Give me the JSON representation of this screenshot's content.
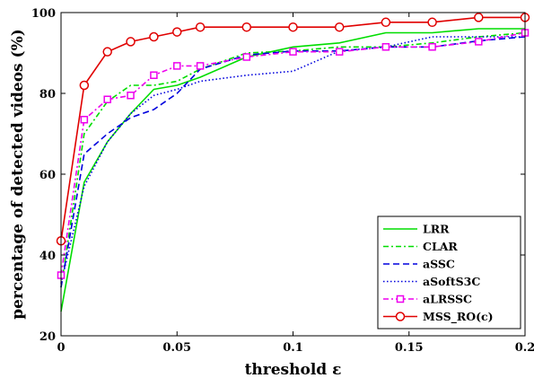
{
  "chart_data": {
    "type": "line",
    "xlabel": "threshold ε",
    "ylabel": "percentage of detected videos (%)",
    "xlim": [
      0,
      0.2
    ],
    "ylim": [
      20,
      100
    ],
    "xticks": [
      0,
      0.05,
      0.1,
      0.15,
      0.2
    ],
    "xtick_labels": [
      "0",
      "0.05",
      "0.1",
      "0.15",
      "0.2"
    ],
    "yticks": [
      20,
      40,
      60,
      80,
      100
    ],
    "ytick_labels": [
      "20",
      "40",
      "60",
      "80",
      "100"
    ],
    "grid": false,
    "legend_position": "bottom-right",
    "series": [
      {
        "name": "LRR",
        "color": "#00dd00",
        "dash": "solid",
        "marker": "none",
        "x": [
          0,
          0.01,
          0.02,
          0.03,
          0.04,
          0.05,
          0.06,
          0.08,
          0.1,
          0.12,
          0.14,
          0.16,
          0.18,
          0.2
        ],
        "y": [
          26,
          58,
          68,
          75,
          81,
          82,
          84,
          89,
          91.5,
          92.5,
          95,
          95,
          96,
          96
        ]
      },
      {
        "name": "CLAR",
        "color": "#00dd00",
        "dash": "6,3,2,3",
        "marker": "none",
        "x": [
          0,
          0.01,
          0.02,
          0.03,
          0.04,
          0.05,
          0.06,
          0.08,
          0.1,
          0.12,
          0.14,
          0.16,
          0.18,
          0.2
        ],
        "y": [
          32,
          70,
          78,
          82,
          82,
          83,
          86,
          90,
          90.5,
          91.5,
          91.5,
          92.5,
          94,
          95
        ]
      },
      {
        "name": "aSSC",
        "color": "#0000dd",
        "dash": "7,4",
        "marker": "none",
        "x": [
          0,
          0.01,
          0.02,
          0.03,
          0.04,
          0.05,
          0.06,
          0.08,
          0.1,
          0.12,
          0.14,
          0.16,
          0.18,
          0.2
        ],
        "y": [
          32,
          65,
          70,
          74,
          76,
          80,
          86,
          89.5,
          90.5,
          90.5,
          91.5,
          91.5,
          93,
          94
        ]
      },
      {
        "name": "aSoftS3C",
        "color": "#0000dd",
        "dash": "1.5,2.5",
        "marker": "none",
        "x": [
          0,
          0.01,
          0.02,
          0.03,
          0.04,
          0.05,
          0.06,
          0.08,
          0.1,
          0.12,
          0.14,
          0.16,
          0.18,
          0.2
        ],
        "y": [
          33,
          57,
          68,
          75,
          79.5,
          81,
          83,
          84.5,
          85.5,
          90.5,
          91.5,
          94,
          94,
          94
        ]
      },
      {
        "name": "aLRSSC",
        "color": "#ee00ee",
        "dash": "6,3,2,3",
        "marker": "square",
        "x": [
          0,
          0.01,
          0.02,
          0.03,
          0.04,
          0.05,
          0.06,
          0.08,
          0.1,
          0.12,
          0.14,
          0.16,
          0.18,
          0.2
        ],
        "y": [
          35,
          73.5,
          78.5,
          79.5,
          84.5,
          86.8,
          86.8,
          89,
          90.3,
          90.3,
          91.5,
          91.5,
          92.8,
          95
        ]
      },
      {
        "name": "MSS_RO(c)",
        "color": "#e00000",
        "dash": "solid",
        "marker": "circle",
        "x": [
          0,
          0.01,
          0.02,
          0.03,
          0.04,
          0.05,
          0.06,
          0.08,
          0.1,
          0.12,
          0.14,
          0.16,
          0.18,
          0.2
        ],
        "y": [
          43.5,
          82,
          90.3,
          92.8,
          94,
          95.2,
          96.4,
          96.4,
          96.4,
          96.4,
          97.6,
          97.6,
          98.8,
          98.8
        ]
      }
    ]
  }
}
